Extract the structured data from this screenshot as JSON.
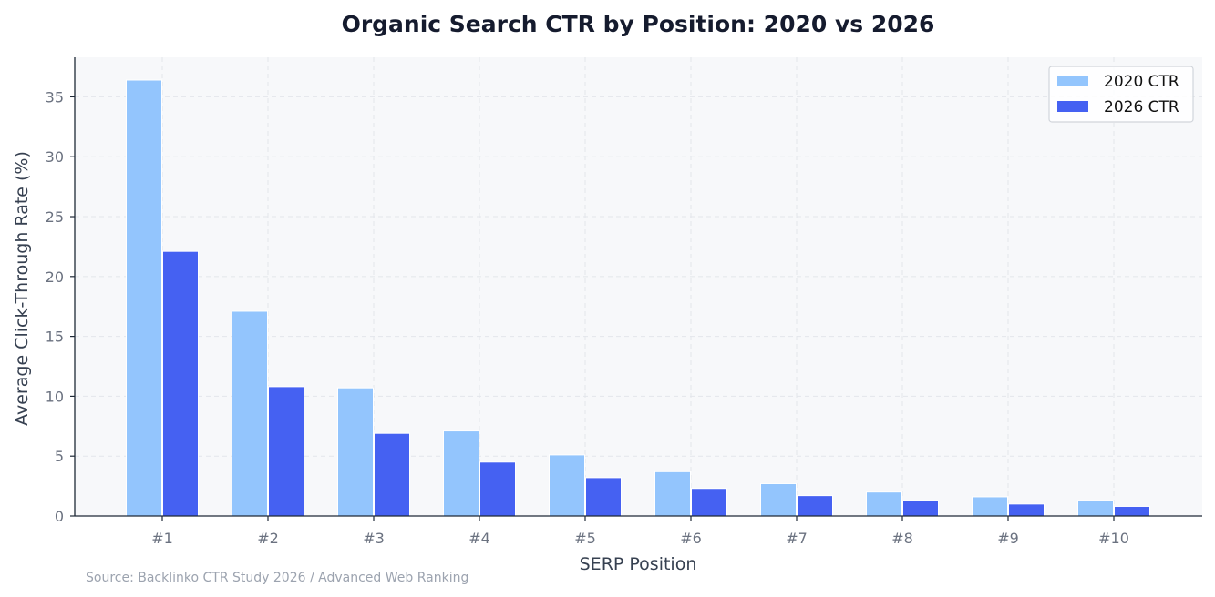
{
  "chart_data": {
    "type": "bar",
    "title": "Organic Search CTR by Position: 2020 vs 2026",
    "xlabel": "SERP Position",
    "ylabel": "Average Click-Through Rate (%)",
    "categories": [
      "#1",
      "#2",
      "#3",
      "#4",
      "#5",
      "#6",
      "#7",
      "#8",
      "#9",
      "#10"
    ],
    "series": [
      {
        "name": "2020 CTR",
        "color": "#93c5fd",
        "values": [
          36.4,
          17.1,
          10.7,
          7.1,
          5.1,
          3.7,
          2.7,
          2.0,
          1.6,
          1.3
        ]
      },
      {
        "name": "2026 CTR",
        "color": "#4561f2",
        "values": [
          22.1,
          10.8,
          6.9,
          4.5,
          3.2,
          2.3,
          1.7,
          1.3,
          1.0,
          0.8
        ]
      }
    ],
    "ylim": [
      0,
      38.3
    ],
    "yticks": [
      0,
      5,
      10,
      15,
      20,
      25,
      30,
      35
    ],
    "grid": true,
    "legend": "top-right",
    "source": "Source: Backlinko CTR Study 2026 / Advanced Web Ranking"
  }
}
